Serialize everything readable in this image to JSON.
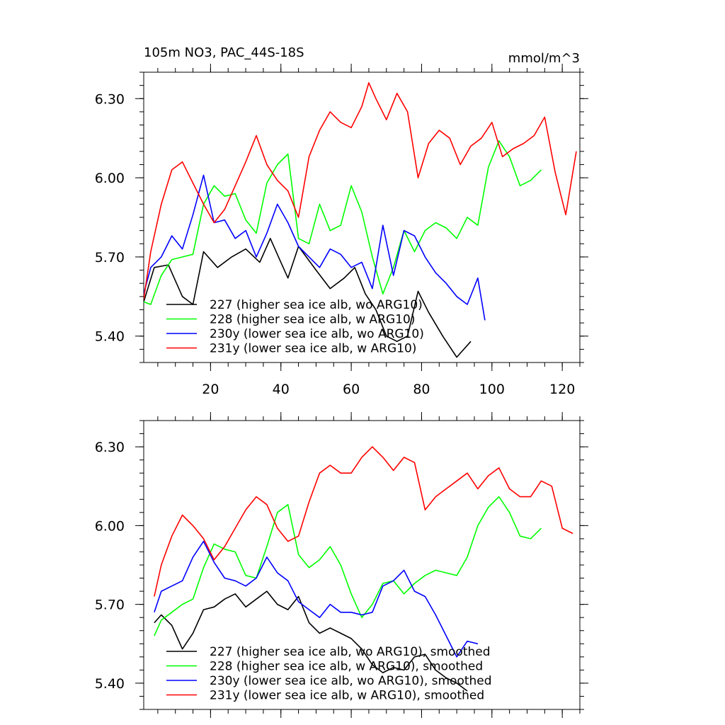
{
  "colors": {
    "s227": "#000000",
    "s228": "#00ff00",
    "s230y": "#0000ff",
    "s231y": "#ff0000"
  },
  "chart_data": [
    {
      "type": "line",
      "title": "105m NO3, PAC_44S-18S",
      "units": "mmol/m^3",
      "xlim": [
        1,
        125
      ],
      "ylim": [
        5.3,
        6.4
      ],
      "xticks": [
        "20",
        "40",
        "60",
        "80",
        "100",
        "120"
      ],
      "yticks": [
        "5.40",
        "5.70",
        "6.00",
        "6.30"
      ],
      "legend_position": "bottom-left",
      "series": [
        {
          "name": "227 (higher sea ice alb, wo ARG10)",
          "color": "#000000",
          "x": [
            1,
            4,
            8,
            12,
            15,
            18,
            22,
            26,
            30,
            34,
            37,
            40,
            42,
            45,
            50,
            54,
            58,
            61,
            64,
            67,
            70,
            73,
            76,
            79,
            82,
            86,
            90,
            94
          ],
          "y": [
            5.53,
            5.66,
            5.67,
            5.55,
            5.52,
            5.72,
            5.66,
            5.7,
            5.73,
            5.68,
            5.77,
            5.68,
            5.62,
            5.74,
            5.65,
            5.58,
            5.62,
            5.66,
            5.56,
            5.5,
            5.4,
            5.38,
            5.4,
            5.57,
            5.49,
            5.4,
            5.32,
            5.38
          ]
        },
        {
          "name": "228 (higher sea ice alb, w ARG10)",
          "color": "#00ff00",
          "x": [
            1,
            3,
            6,
            9,
            12,
            15,
            18,
            21,
            24,
            27,
            30,
            33,
            36,
            39,
            42,
            45,
            48,
            51,
            54,
            57,
            60,
            63,
            66,
            69,
            72,
            75,
            78,
            81,
            84,
            87,
            90,
            93,
            96,
            99,
            102,
            105,
            108,
            111,
            114
          ],
          "y": [
            5.53,
            5.52,
            5.63,
            5.69,
            5.7,
            5.71,
            5.9,
            5.97,
            5.93,
            5.94,
            5.84,
            5.79,
            5.98,
            6.05,
            6.09,
            5.77,
            5.75,
            5.9,
            5.8,
            5.82,
            5.97,
            5.87,
            5.7,
            5.56,
            5.66,
            5.8,
            5.72,
            5.8,
            5.83,
            5.81,
            5.77,
            5.85,
            5.82,
            6.04,
            6.14,
            6.08,
            5.97,
            5.99,
            6.03
          ]
        },
        {
          "name": "230y (lower sea ice alb, wo ARG10)",
          "color": "#0000ff",
          "x": [
            1,
            3,
            6,
            9,
            12,
            15,
            18,
            21,
            24,
            27,
            30,
            33,
            36,
            39,
            42,
            45,
            48,
            51,
            54,
            57,
            60,
            63,
            66,
            69,
            72,
            75,
            78,
            81,
            84,
            87,
            90,
            93,
            96,
            98
          ],
          "y": [
            5.56,
            5.66,
            5.7,
            5.78,
            5.73,
            5.86,
            6.01,
            5.83,
            5.84,
            5.77,
            5.8,
            5.7,
            5.79,
            5.9,
            5.83,
            5.74,
            5.7,
            5.66,
            5.73,
            5.71,
            5.66,
            5.68,
            5.58,
            5.82,
            5.63,
            5.8,
            5.78,
            5.7,
            5.64,
            5.6,
            5.55,
            5.52,
            5.62,
            5.46
          ]
        },
        {
          "name": "231y (lower sea ice alb, w ARG10)",
          "color": "#ff0000",
          "x": [
            1,
            3,
            6,
            9,
            12,
            15,
            18,
            21,
            24,
            27,
            30,
            33,
            36,
            39,
            42,
            45,
            48,
            51,
            54,
            57,
            60,
            63,
            65,
            67,
            70,
            73,
            76,
            79,
            82,
            85,
            88,
            91,
            94,
            97,
            100,
            103,
            106,
            109,
            112,
            115,
            118,
            121,
            124
          ],
          "y": [
            5.54,
            5.72,
            5.9,
            6.03,
            6.06,
            5.98,
            5.9,
            5.83,
            5.88,
            5.97,
            6.06,
            6.16,
            6.05,
            5.99,
            5.95,
            5.85,
            6.08,
            6.18,
            6.25,
            6.21,
            6.19,
            6.27,
            6.36,
            6.3,
            6.22,
            6.32,
            6.25,
            6.0,
            6.13,
            6.18,
            6.15,
            6.05,
            6.12,
            6.15,
            6.21,
            6.08,
            6.11,
            6.13,
            6.16,
            6.23,
            6.02,
            5.86,
            6.1
          ]
        }
      ]
    },
    {
      "type": "line",
      "title": "",
      "units": "",
      "xlim": [
        1,
        125
      ],
      "ylim": [
        5.3,
        6.4
      ],
      "xticks": [],
      "yticks": [
        "5.40",
        "5.70",
        "6.00",
        "6.30"
      ],
      "legend_position": "bottom-left",
      "series": [
        {
          "name": "227 (higher sea ice alb, wo ARG10), smoothed",
          "color": "#000000",
          "x": [
            4,
            6,
            9,
            12,
            15,
            18,
            21,
            24,
            27,
            30,
            33,
            36,
            39,
            42,
            45,
            48,
            51,
            54,
            57,
            60,
            63,
            66,
            69,
            72,
            75,
            78,
            81,
            84,
            87,
            90,
            93
          ],
          "y": [
            5.63,
            5.66,
            5.62,
            5.53,
            5.59,
            5.68,
            5.69,
            5.72,
            5.74,
            5.69,
            5.72,
            5.75,
            5.7,
            5.68,
            5.73,
            5.63,
            5.59,
            5.61,
            5.59,
            5.57,
            5.53,
            5.47,
            5.44,
            5.46,
            5.45,
            5.5,
            5.51,
            5.45,
            5.42,
            5.4,
            5.37
          ]
        },
        {
          "name": "228 (higher sea ice alb, w ARG10), smoothed",
          "color": "#00ff00",
          "x": [
            4,
            6,
            9,
            12,
            15,
            18,
            21,
            24,
            27,
            30,
            33,
            36,
            39,
            42,
            45,
            48,
            51,
            54,
            57,
            60,
            63,
            66,
            69,
            72,
            75,
            78,
            81,
            84,
            87,
            90,
            93,
            96,
            99,
            102,
            105,
            108,
            111,
            114
          ],
          "y": [
            5.58,
            5.64,
            5.67,
            5.7,
            5.72,
            5.84,
            5.93,
            5.91,
            5.9,
            5.81,
            5.8,
            5.92,
            6.05,
            6.08,
            5.89,
            5.84,
            5.87,
            5.92,
            5.85,
            5.74,
            5.65,
            5.7,
            5.78,
            5.79,
            5.74,
            5.78,
            5.81,
            5.83,
            5.82,
            5.81,
            5.88,
            6.0,
            6.07,
            6.11,
            6.05,
            5.96,
            5.95,
            5.99
          ]
        },
        {
          "name": "230y (lower sea ice alb, wo ARG10), smoothed",
          "color": "#0000ff",
          "x": [
            4,
            6,
            9,
            12,
            15,
            18,
            21,
            24,
            27,
            30,
            33,
            36,
            39,
            42,
            45,
            48,
            51,
            54,
            57,
            60,
            63,
            66,
            69,
            72,
            75,
            78,
            81,
            84,
            87,
            90,
            93,
            96
          ],
          "y": [
            5.67,
            5.75,
            5.77,
            5.79,
            5.88,
            5.94,
            5.86,
            5.8,
            5.79,
            5.77,
            5.8,
            5.88,
            5.82,
            5.79,
            5.71,
            5.68,
            5.65,
            5.7,
            5.67,
            5.67,
            5.66,
            5.67,
            5.77,
            5.79,
            5.83,
            5.75,
            5.73,
            5.66,
            5.58,
            5.5,
            5.56,
            5.55
          ]
        },
        {
          "name": "231y (lower sea ice alb, w ARG10), smoothed",
          "color": "#ff0000",
          "x": [
            4,
            6,
            9,
            12,
            15,
            18,
            21,
            24,
            27,
            30,
            33,
            36,
            39,
            42,
            45,
            48,
            51,
            54,
            57,
            60,
            63,
            66,
            69,
            72,
            75,
            78,
            81,
            84,
            87,
            90,
            93,
            96,
            99,
            102,
            105,
            108,
            111,
            114,
            117,
            120,
            123
          ],
          "y": [
            5.73,
            5.85,
            5.96,
            6.04,
            6.0,
            5.95,
            5.87,
            5.92,
            5.99,
            6.06,
            6.11,
            6.08,
            5.99,
            5.94,
            5.96,
            6.09,
            6.2,
            6.23,
            6.2,
            6.2,
            6.26,
            6.3,
            6.26,
            6.21,
            6.26,
            6.24,
            6.06,
            6.11,
            6.14,
            6.17,
            6.2,
            6.14,
            6.19,
            6.22,
            6.14,
            6.11,
            6.11,
            6.17,
            6.15,
            5.99,
            5.97
          ]
        }
      ]
    }
  ]
}
